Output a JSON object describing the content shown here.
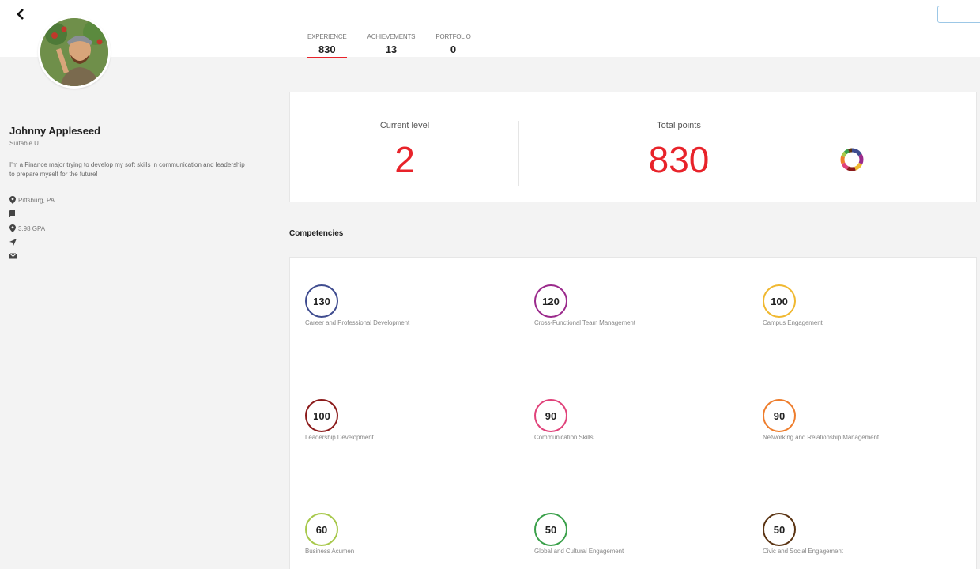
{
  "profile": {
    "name": "Johnny Appleseed",
    "school": "Suitable U",
    "bio": "I'm a Finance major trying to develop my soft skills in communication and leadership to prepare myself for the future!",
    "location": "Pittsburg, PA",
    "gpa": "3.98 GPA"
  },
  "tabs": [
    {
      "label": "EXPERIENCE",
      "count": "830"
    },
    {
      "label": "ACHIEVEMENTS",
      "count": "13"
    },
    {
      "label": "PORTFOLIO",
      "count": "0"
    }
  ],
  "stats": {
    "level_title": "Current level",
    "level_value": "2",
    "points_title": "Total points",
    "points_value": "830"
  },
  "competencies_heading": "Competencies",
  "competencies": [
    {
      "value": "130",
      "label": "Career and Professional Development",
      "color": "#3f4c8f"
    },
    {
      "value": "120",
      "label": "Cross-Functional Team Management",
      "color": "#9b2a8c"
    },
    {
      "value": "100",
      "label": "Campus Engagement",
      "color": "#f0b830"
    },
    {
      "value": "100",
      "label": "Leadership Development",
      "color": "#8b1a1a"
    },
    {
      "value": "90",
      "label": "Communication Skills",
      "color": "#e0427a"
    },
    {
      "value": "90",
      "label": "Networking and Relationship Management",
      "color": "#ee7d2c"
    },
    {
      "value": "60",
      "label": "Business Acumen",
      "color": "#a7c84a"
    },
    {
      "value": "50",
      "label": "Global and Cultural Engagement",
      "color": "#3aa04a"
    },
    {
      "value": "50",
      "label": "Civic and Social Engagement",
      "color": "#5a3312"
    }
  ],
  "icons": {
    "back": "chevron-left-icon",
    "location": "map-pin-icon",
    "book": "book-icon",
    "gpa": "map-pin-icon",
    "rocket": "rocket-icon",
    "mail": "mail-icon"
  },
  "accent": "#e8232a"
}
